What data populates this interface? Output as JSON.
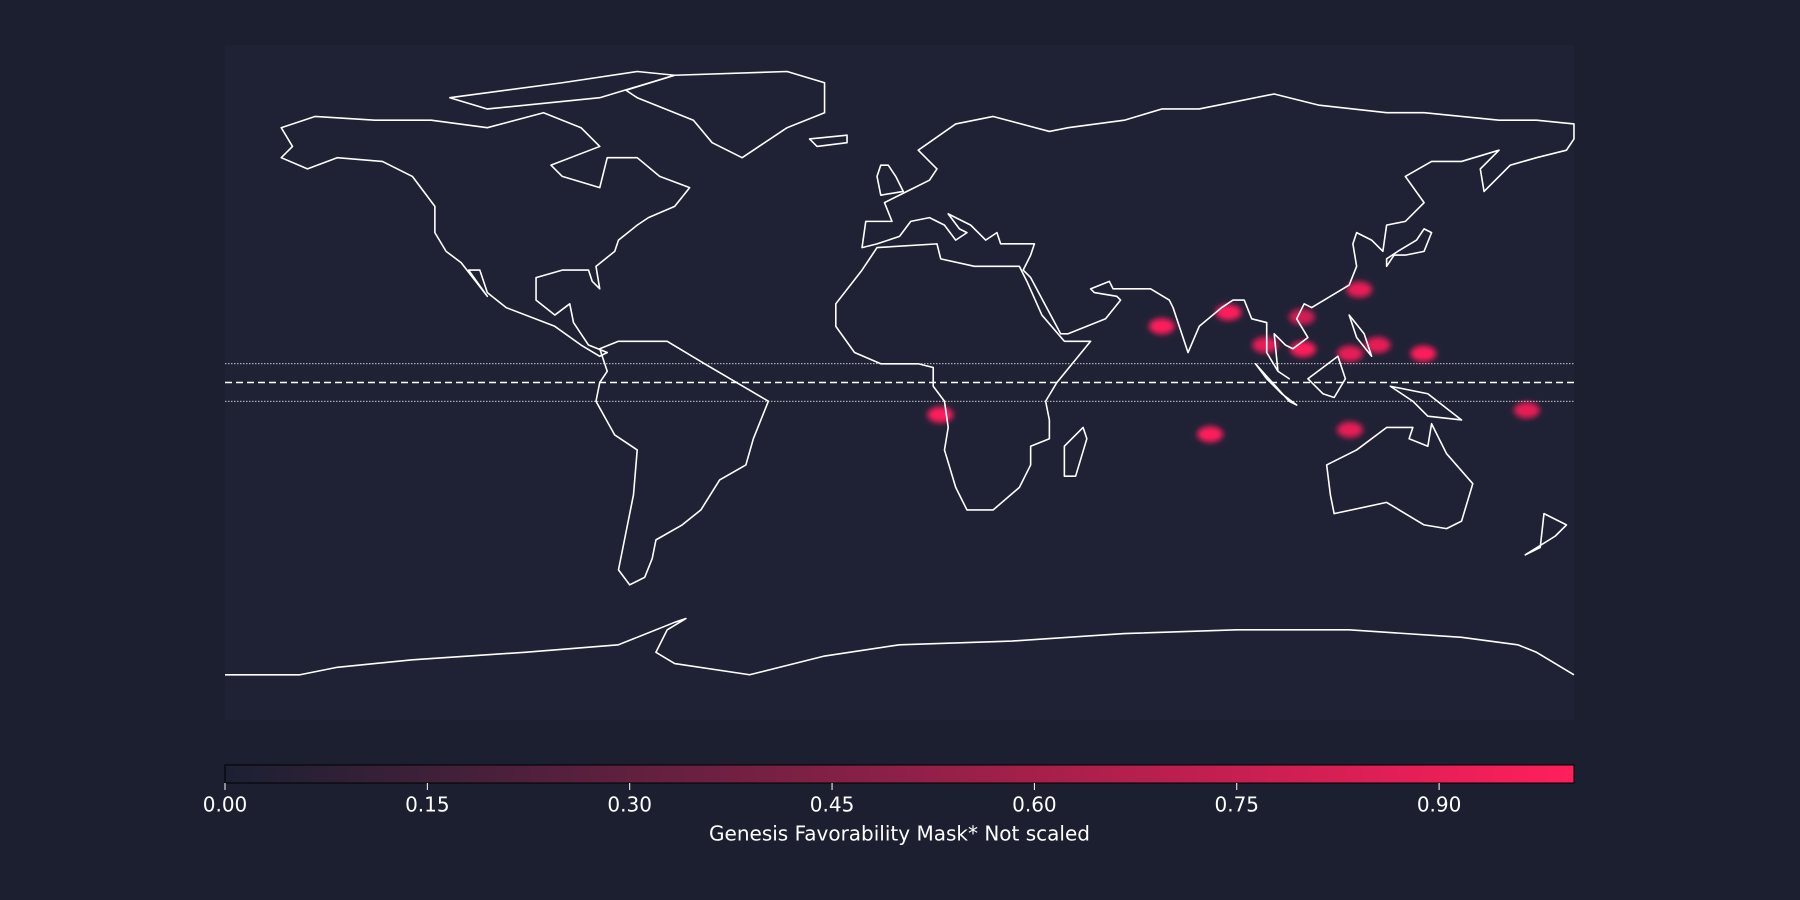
{
  "chart_data": {
    "type": "map",
    "projection": "equirectangular",
    "colorbar_label": "Genesis Favorability Mask* Not scaled",
    "colorbar_lim": [
      0,
      1
    ],
    "colorbar_ticks": [
      {
        "value": 0,
        "label": "0.00"
      },
      {
        "value": 0.15,
        "label": "0.15"
      },
      {
        "value": 0.3,
        "label": "0.30"
      },
      {
        "value": 0.45,
        "label": "0.45"
      },
      {
        "value": 0.6,
        "label": "0.60"
      },
      {
        "value": 0.75,
        "label": "0.75"
      },
      {
        "value": 0.9,
        "label": "0.90"
      }
    ],
    "cmap": [
      "#1c2033",
      "#ff1f5b"
    ],
    "reference_lats": {
      "equator": 0,
      "band": [
        -5,
        5
      ]
    },
    "hotspots": [
      {
        "lon": 70,
        "lat": 15,
        "value": 1
      },
      {
        "lon": 87.8,
        "lat": 18.7,
        "value": 1
      },
      {
        "lon": 107.4,
        "lat": 17.5,
        "value": 0.8
      },
      {
        "lon": 122.7,
        "lat": 24.8,
        "value": 0.9
      },
      {
        "lon": 107.7,
        "lat": 8.9,
        "value": 1
      },
      {
        "lon": 97.6,
        "lat": 10,
        "value": 0.9
      },
      {
        "lon": 127.6,
        "lat": 10,
        "value": 0.9
      },
      {
        "lon": 139.8,
        "lat": 7.7,
        "value": 1
      },
      {
        "lon": 120.2,
        "lat": 7.7,
        "value": 0.9
      },
      {
        "lon": 10.9,
        "lat": -8.6,
        "value": 1
      },
      {
        "lon": 82.9,
        "lat": -13.8,
        "value": 1
      },
      {
        "lon": 120.2,
        "lat": -12.6,
        "value": 0.9
      },
      {
        "lon": 167.4,
        "lat": -7.4,
        "value": 0.9
      }
    ]
  }
}
